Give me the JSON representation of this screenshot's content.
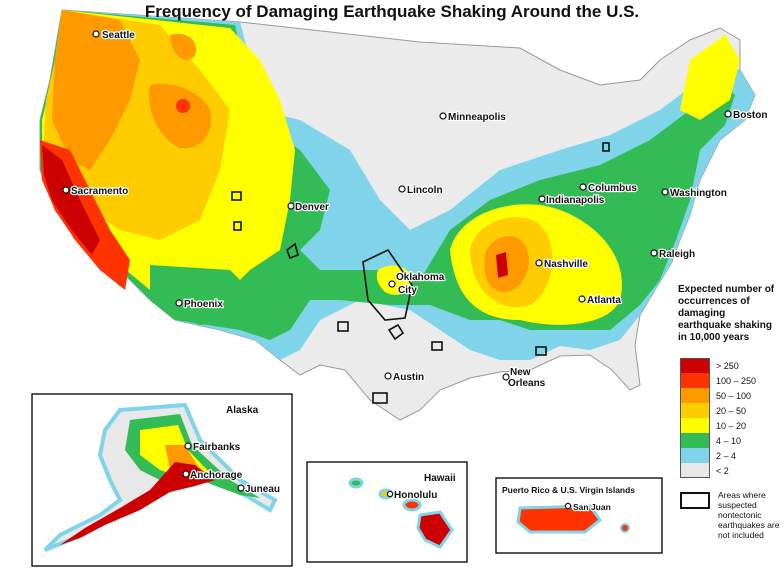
{
  "title": "Frequency of Damaging Earthquake Shaking Around the U.S.",
  "cities": {
    "seattle": "Seattle",
    "sacramento": "Sacramento",
    "phoenix": "Phoenix",
    "denver": "Denver",
    "lincoln": "Lincoln",
    "minneapolis": "Minneapolis",
    "oklahoma_city_1": "Oklahoma",
    "oklahoma_city_2": "City",
    "austin": "Austin",
    "new_orleans_1": "New",
    "new_orleans_2": "Orleans",
    "nashville": "Nashville",
    "atlanta": "Atlanta",
    "indianapolis": "Indianapolis",
    "columbus": "Columbus",
    "washington": "Washington",
    "raleigh": "Raleigh",
    "boston": "Boston",
    "fairbanks": "Fairbanks",
    "anchorage": "Anchorage",
    "juneau": "Juneau",
    "honolulu": "Honolulu",
    "san_juan": "San Juan"
  },
  "insets": {
    "alaska": "Alaska",
    "hawaii": "Hawaii",
    "puerto_rico": "Puerto Rico & U.S. Virgin Islands"
  },
  "legend": {
    "title": "Expected number of occurrences of damaging earthquake shaking in 10,000 years",
    "items": [
      {
        "label": "> 250",
        "color": "#cc0000"
      },
      {
        "label": "100 – 250",
        "color": "#ff3300"
      },
      {
        "label": "50 – 100",
        "color": "#ff9900"
      },
      {
        "label": "20 – 50",
        "color": "#ffcc00"
      },
      {
        "label": "10 – 20",
        "color": "#ffff00"
      },
      {
        "label": "4 – 10",
        "color": "#33bb55"
      },
      {
        "label": "2 – 4",
        "color": "#7fd4ea"
      },
      {
        "label": "< 2",
        "color": "#e8e8e8"
      }
    ],
    "nontectonic": "Areas where suspected nontectonic earthquakes are not included"
  }
}
